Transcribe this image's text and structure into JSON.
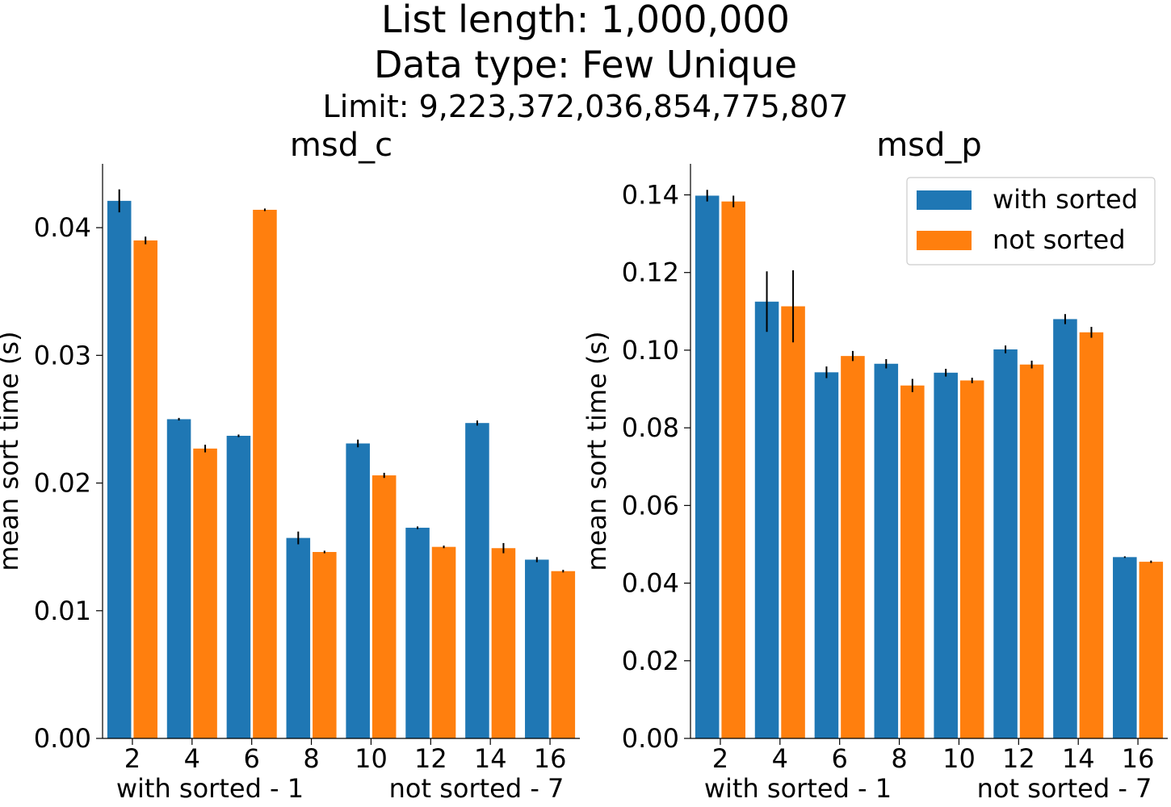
{
  "figure": {
    "title_lines": [
      "List length: 1,000,000",
      "Data type: Few Unique",
      "Limit: 9,223,372,036,854,775,807"
    ]
  },
  "colors": {
    "with_sorted": "#1f77b4",
    "not_sorted": "#ff7f0e",
    "error_bar": "#000000"
  },
  "chart_data": [
    {
      "type": "bar",
      "title": "msd_c",
      "ylabel": "mean sort time (s)",
      "xlabel": "",
      "categories": [
        "2",
        "4",
        "6",
        "8",
        "10",
        "12",
        "14",
        "16"
      ],
      "x_annotations": [
        "with sorted - 1",
        "not sorted - 7"
      ],
      "ylim": [
        0,
        0.045
      ],
      "yticks": [
        0.0,
        0.01,
        0.02,
        0.03,
        0.04
      ],
      "ytick_labels": [
        "0.00",
        "0.01",
        "0.02",
        "0.03",
        "0.04"
      ],
      "grid": false,
      "legend": null,
      "series": [
        {
          "name": "with sorted",
          "values": [
            0.0421,
            0.025,
            0.0237,
            0.0157,
            0.0231,
            0.0165,
            0.0247,
            0.014
          ],
          "errors": [
            0.0009,
            0.0001,
            0.0001,
            0.0005,
            0.0003,
            0.0001,
            0.0002,
            0.0002
          ]
        },
        {
          "name": "not sorted",
          "values": [
            0.039,
            0.0227,
            0.0414,
            0.0146,
            0.0206,
            0.015,
            0.0149,
            0.0131
          ],
          "errors": [
            0.0003,
            0.0003,
            0.0001,
            0.0001,
            0.0002,
            0.0001,
            0.0004,
            0.0001
          ]
        }
      ]
    },
    {
      "type": "bar",
      "title": "msd_p",
      "ylabel": "mean sort time (s)",
      "xlabel": "",
      "categories": [
        "2",
        "4",
        "6",
        "8",
        "10",
        "12",
        "14",
        "16"
      ],
      "x_annotations": [
        "with sorted - 1",
        "not sorted - 7"
      ],
      "ylim": [
        0,
        0.148
      ],
      "yticks": [
        0.0,
        0.02,
        0.04,
        0.06,
        0.08,
        0.1,
        0.12,
        0.14
      ],
      "ytick_labels": [
        "0.00",
        "0.02",
        "0.04",
        "0.06",
        "0.08",
        "0.10",
        "0.12",
        "0.14"
      ],
      "grid": false,
      "legend": "top-right",
      "series": [
        {
          "name": "with sorted",
          "values": [
            0.1398,
            0.1125,
            0.0943,
            0.0965,
            0.0942,
            0.1002,
            0.108,
            0.0467
          ],
          "errors": [
            0.0015,
            0.0078,
            0.0015,
            0.0012,
            0.001,
            0.001,
            0.0013,
            0.0002
          ]
        },
        {
          "name": "not sorted",
          "values": [
            0.1383,
            0.1113,
            0.0985,
            0.0909,
            0.0922,
            0.0963,
            0.1046,
            0.0455
          ],
          "errors": [
            0.0015,
            0.0093,
            0.0013,
            0.0017,
            0.0007,
            0.001,
            0.0014,
            0.0003
          ]
        }
      ]
    }
  ]
}
